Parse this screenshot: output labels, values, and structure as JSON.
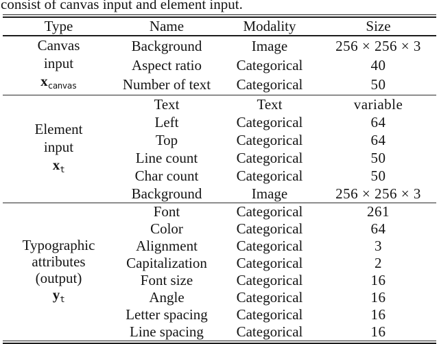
{
  "caption": "consist of canvas input and element input.",
  "table": {
    "headers": {
      "type": "Type",
      "name": "Name",
      "modality": "Modality",
      "size": "Size"
    },
    "sections": [
      {
        "type": {
          "line1": "Canvas",
          "line2": "input",
          "symbol_base": "x",
          "symbol_sub": "canvas"
        },
        "rows": [
          {
            "name": "Background",
            "modality": "Image",
            "size": "256 × 256 × 3"
          },
          {
            "name": "Aspect ratio",
            "modality": "Categorical",
            "size": "40"
          },
          {
            "name": "Number of text",
            "modality": "Categorical",
            "size": "50"
          }
        ]
      },
      {
        "type": {
          "line1": "Element",
          "line2": "input",
          "symbol_base": "x",
          "symbol_sub": "t"
        },
        "rows": [
          {
            "name": "Text",
            "modality": "Text",
            "size": "variable"
          },
          {
            "name": "Left",
            "modality": "Categorical",
            "size": "64"
          },
          {
            "name": "Top",
            "modality": "Categorical",
            "size": "64"
          },
          {
            "name": "Line count",
            "modality": "Categorical",
            "size": "50"
          },
          {
            "name": "Char count",
            "modality": "Categorical",
            "size": "50"
          },
          {
            "name": "Background",
            "modality": "Image",
            "size": "256 × 256 × 3"
          }
        ]
      },
      {
        "type": {
          "line1": "Typographic",
          "line2": "attributes",
          "line3": "(output)",
          "symbol_base": "y",
          "symbol_sub": "t"
        },
        "rows": [
          {
            "name": "Font",
            "modality": "Categorical",
            "size": "261"
          },
          {
            "name": "Color",
            "modality": "Categorical",
            "size": "64"
          },
          {
            "name": "Alignment",
            "modality": "Categorical",
            "size": "3"
          },
          {
            "name": "Capitalization",
            "modality": "Categorical",
            "size": "2"
          },
          {
            "name": "Font size",
            "modality": "Categorical",
            "size": "16"
          },
          {
            "name": "Angle",
            "modality": "Categorical",
            "size": "16"
          },
          {
            "name": "Letter spacing",
            "modality": "Categorical",
            "size": "16"
          },
          {
            "name": "Line spacing",
            "modality": "Categorical",
            "size": "16"
          }
        ]
      }
    ]
  },
  "colors": {
    "text": "#141414",
    "rule": "#1c1c1c",
    "background": "#ffffff"
  }
}
